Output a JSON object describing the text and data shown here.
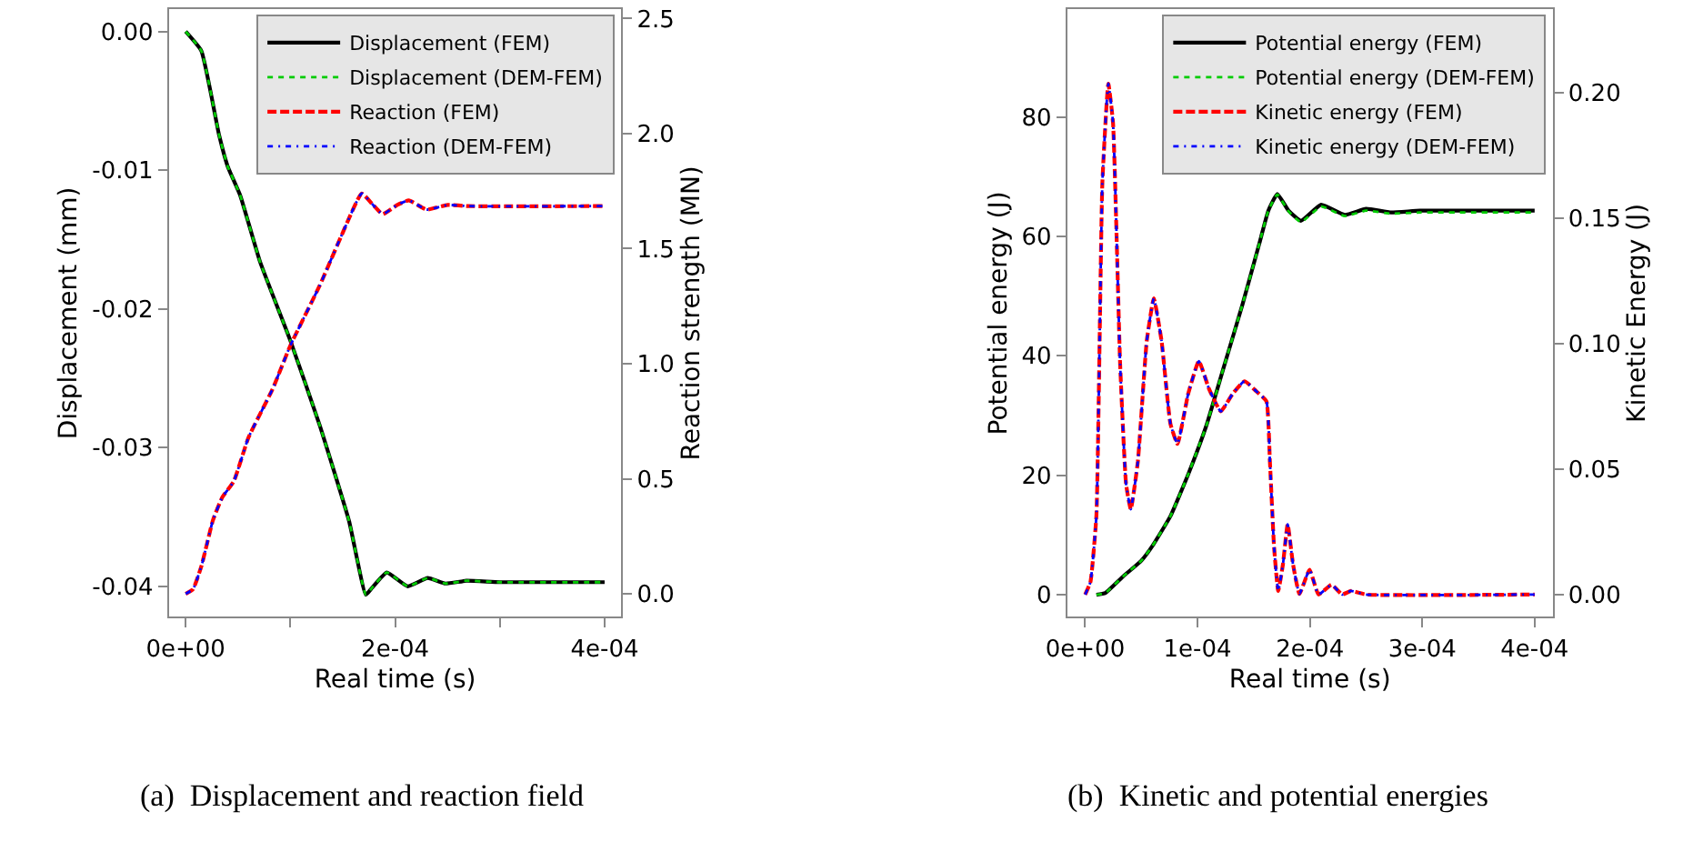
{
  "chart_data": [
    {
      "type": "line",
      "xlabel": "Real time (s)",
      "ylabel": "Displacement (mm)",
      "y2label": "Reaction strength (MN)",
      "xlim": [
        -1.6e-05,
        0.000416
      ],
      "xticks": [
        {
          "value": 0,
          "label": "0e+00"
        },
        {
          "value": 0.0001,
          "label": null
        },
        {
          "value": 0.0002,
          "label": "2e-04"
        },
        {
          "value": 0.0003,
          "label": null
        },
        {
          "value": 0.0004,
          "label": "4e-04"
        }
      ],
      "ylim": [
        -0.0422,
        0.0016
      ],
      "yticks": [
        {
          "value": -0.04,
          "label": "-0.04"
        },
        {
          "value": -0.03,
          "label": "-0.03"
        },
        {
          "value": -0.02,
          "label": "-0.02"
        },
        {
          "value": -0.01,
          "label": "-0.01"
        },
        {
          "value": 0,
          "label": "0.00"
        }
      ],
      "y2lim": [
        -0.1,
        2.54
      ],
      "y2ticks": [
        {
          "value": 0,
          "label": "0.0"
        },
        {
          "value": 0.5,
          "label": "0.5"
        },
        {
          "value": 1,
          "label": "1.0"
        },
        {
          "value": 1.5,
          "label": "1.5"
        },
        {
          "value": 2,
          "label": "2.0"
        },
        {
          "value": 2.5,
          "label": "2.5"
        }
      ],
      "legend": "top right",
      "marker": "none",
      "annotations": [
        "(a)  Displacement and reaction field"
      ],
      "series": [
        {
          "name": "Displacement (FEM)",
          "color": "#000000",
          "line_style": "solid",
          "x": [
            0,
            1.5e-05,
            3.2e-05,
            4e-05,
            5.2e-05,
            7.1e-05,
            0.0001,
            0.000128,
            0.000156,
            0.000172,
            0.000178,
            0.000192,
            0.000212,
            0.000231,
            0.000248,
            0.000268,
            0.0003,
            0.0004
          ],
          "values": [
            0,
            -0.0014,
            -0.0075,
            -0.0097,
            -0.0118,
            -0.0166,
            -0.0223,
            -0.0284,
            -0.0353,
            -0.0406,
            -0.0401,
            -0.039,
            -0.04,
            -0.0394,
            -0.0398,
            -0.0396,
            -0.0397,
            -0.0397
          ]
        },
        {
          "name": "Displacement (DEM-FEM)",
          "color": "#00cc00",
          "line_style": "dotted",
          "x": [
            0,
            1.5e-05,
            3.2e-05,
            4e-05,
            5.2e-05,
            7.1e-05,
            0.0001,
            0.000128,
            0.000156,
            0.000172,
            0.000178,
            0.000192,
            0.000212,
            0.000231,
            0.000248,
            0.000268,
            0.0003,
            0.0004
          ],
          "values": [
            0,
            -0.0014,
            -0.0075,
            -0.0097,
            -0.0118,
            -0.0166,
            -0.0223,
            -0.0284,
            -0.0353,
            -0.0406,
            -0.0401,
            -0.039,
            -0.04,
            -0.0394,
            -0.0398,
            -0.0396,
            -0.0397,
            -0.0397
          ]
        },
        {
          "name": "Reaction (FEM)",
          "color": "#ff0000",
          "line_style": "dashed",
          "axis": "y2",
          "x": [
            0,
            7e-06,
            1.5e-05,
            2.6e-05,
            3.5e-05,
            4.6e-05,
            6e-05,
            8.3e-05,
            0.0001,
            0.000128,
            0.00015,
            0.000168,
            0.000179,
            0.000188,
            0.000202,
            0.000213,
            0.00023,
            0.00025,
            0.00027,
            0.0004
          ],
          "values": [
            0,
            0.02,
            0.12,
            0.32,
            0.42,
            0.49,
            0.68,
            0.89,
            1.08,
            1.34,
            1.57,
            1.74,
            1.69,
            1.65,
            1.69,
            1.71,
            1.67,
            1.69,
            1.685,
            1.685
          ]
        },
        {
          "name": "Reaction (DEM-FEM)",
          "color": "#0000ff",
          "line_style": "dashdot",
          "axis": "y2",
          "x": [
            0,
            7e-06,
            1.5e-05,
            2.6e-05,
            3.5e-05,
            4.6e-05,
            6e-05,
            8.3e-05,
            0.0001,
            0.000128,
            0.00015,
            0.000168,
            0.000179,
            0.000188,
            0.000202,
            0.000213,
            0.00023,
            0.00025,
            0.00027,
            0.0004
          ],
          "values": [
            0,
            0.02,
            0.12,
            0.32,
            0.42,
            0.49,
            0.68,
            0.89,
            1.08,
            1.34,
            1.57,
            1.74,
            1.69,
            1.65,
            1.69,
            1.71,
            1.67,
            1.69,
            1.685,
            1.685
          ]
        }
      ]
    },
    {
      "type": "line",
      "xlabel": "Real time (s)",
      "ylabel": "Potential energy (J)",
      "y2label": "Kinetic Energy (J)",
      "xlim": [
        -1.6e-05,
        0.000416
      ],
      "xticks": [
        {
          "value": 0,
          "label": "0e+00"
        },
        {
          "value": 0.0001,
          "label": "1e-04"
        },
        {
          "value": 0.0002,
          "label": "2e-04"
        },
        {
          "value": 0.0003,
          "label": "3e-04"
        },
        {
          "value": 0.0004,
          "label": "4e-04"
        }
      ],
      "ylim": [
        -3.7,
        98
      ],
      "yticks": [
        0,
        20,
        40,
        60,
        80
      ],
      "y2lim": [
        -0.0089,
        0.2332
      ],
      "y2ticks": [
        {
          "value": 0,
          "label": "0.00"
        },
        {
          "value": 0.05,
          "label": "0.05"
        },
        {
          "value": 0.1,
          "label": "0.10"
        },
        {
          "value": 0.15,
          "label": "0.15"
        },
        {
          "value": 0.2,
          "label": "0.20"
        }
      ],
      "legend": "top right",
      "marker": "none",
      "annotations": [
        "(b)  Kinetic and potential energies"
      ],
      "series": [
        {
          "name": "Potential energy (FEM)",
          "color": "#000000",
          "line_style": "solid",
          "x": [
            1e-05,
            1.8e-05,
            3.4e-05,
            5e-05,
            6e-05,
            7.6e-05,
            9.2e-05,
            0.000108,
            0.000124,
            0.00014,
            0.000155,
            0.000163,
            0.000171,
            0.000181,
            0.000192,
            0.00021,
            0.000231,
            0.00025,
            0.000272,
            0.000298,
            0.0004
          ],
          "values": [
            0,
            0.3,
            3.1,
            5.7,
            8.2,
            13.2,
            20.3,
            28.4,
            38.5,
            48.6,
            58.8,
            64.3,
            67.1,
            64.3,
            62.6,
            65.3,
            63.6,
            64.6,
            64.0,
            64.3,
            64.3
          ]
        },
        {
          "name": "Potential energy (DEM-FEM)",
          "color": "#00cc00",
          "line_style": "dotted",
          "x": [
            1e-05,
            1.8e-05,
            3.4e-05,
            5e-05,
            6e-05,
            7.6e-05,
            9.2e-05,
            0.000108,
            0.000124,
            0.00014,
            0.000155,
            0.000163,
            0.000171,
            0.000181,
            0.000192,
            0.00021,
            0.000231,
            0.00025,
            0.000272,
            0.000298,
            0.0004
          ],
          "values": [
            0,
            0.3,
            3.1,
            5.7,
            8.2,
            13.2,
            20.3,
            28.4,
            38.5,
            48.6,
            58.8,
            64.3,
            67.0,
            64.2,
            62.4,
            65.0,
            63.4,
            64.3,
            63.8,
            64.0,
            64.0
          ]
        },
        {
          "name": "Kinetic energy (FEM)",
          "color": "#ff0000",
          "line_style": "dashed",
          "axis": "y2",
          "x": [
            0,
            4.7e-06,
            1e-05,
            1.53e-05,
            2.06e-05,
            2.48e-05,
            3.11e-05,
            3.64e-05,
            4.06e-05,
            4.69e-05,
            5.48e-05,
            6.11e-05,
            6.8e-05,
            7.59e-05,
            8.22e-05,
            9.17e-05,
            0.0001012,
            0.0001102,
            0.0001207,
            0.0001313,
            0.0001418,
            0.0001523,
            0.0001613,
            0.0001644,
            0.0001681,
            0.0001718,
            0.000176,
            0.0001802,
            0.000185,
            0.0001907,
            0.0001997,
            0.0002077,
            0.0002193,
            0.0002287,
            0.0002366,
            0.0002498,
            0.0004
          ],
          "values": [
            0,
            0.005,
            0.0315,
            0.164,
            0.2036,
            0.188,
            0.092,
            0.044,
            0.034,
            0.053,
            0.101,
            0.118,
            0.101,
            0.068,
            0.06,
            0.08,
            0.093,
            0.082,
            0.073,
            0.08,
            0.085,
            0.081,
            0.077,
            0.053,
            0.019,
            0.0014,
            0.012,
            0.028,
            0.012,
            0.0002,
            0.0099,
            0,
            0.0039,
            0,
            0.0014,
            0,
            0
          ]
        },
        {
          "name": "Kinetic energy (DEM-FEM)",
          "color": "#0000ff",
          "line_style": "dashdot",
          "axis": "y2",
          "x": [
            0,
            4.7e-06,
            1e-05,
            1.53e-05,
            2.06e-05,
            2.48e-05,
            3.11e-05,
            3.64e-05,
            4.06e-05,
            4.69e-05,
            5.48e-05,
            6.11e-05,
            6.8e-05,
            7.59e-05,
            8.22e-05,
            9.17e-05,
            0.0001012,
            0.0001102,
            0.0001207,
            0.0001313,
            0.0001418,
            0.0001523,
            0.0001613,
            0.0001644,
            0.0001681,
            0.0001718,
            0.000176,
            0.0001802,
            0.000185,
            0.0001907,
            0.0001997,
            0.0002077,
            0.0002193,
            0.0002287,
            0.0002366,
            0.0002498,
            0.0004
          ],
          "values": [
            0,
            0.005,
            0.0315,
            0.164,
            0.2036,
            0.188,
            0.092,
            0.044,
            0.034,
            0.053,
            0.101,
            0.118,
            0.101,
            0.068,
            0.06,
            0.08,
            0.093,
            0.082,
            0.073,
            0.08,
            0.085,
            0.081,
            0.077,
            0.053,
            0.019,
            0.0014,
            0.012,
            0.028,
            0.012,
            0.0002,
            0.0099,
            0,
            0.0039,
            0,
            0.0014,
            0,
            0
          ]
        }
      ]
    }
  ]
}
